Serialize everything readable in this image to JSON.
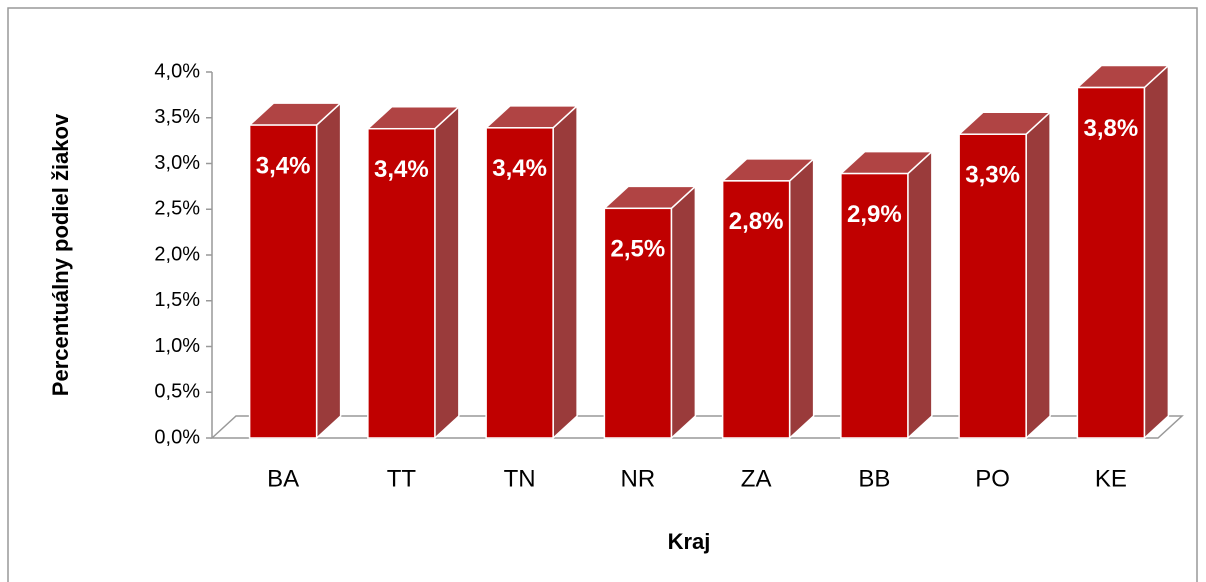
{
  "chart_data": {
    "type": "bar3d",
    "x_label": "Kraj",
    "y_label": "Percentuálny podiel žiakov",
    "categories": [
      "BA",
      "TT",
      "TN",
      "NR",
      "ZA",
      "BB",
      "PO",
      "KE"
    ],
    "values": [
      3.42,
      3.38,
      3.39,
      2.51,
      2.81,
      2.89,
      3.32,
      3.83
    ],
    "value_labels": [
      "3,4%",
      "3,4%",
      "3,4%",
      "2,5%",
      "2,8%",
      "2,9%",
      "3,3%",
      "3,8%"
    ],
    "color": "#c00000",
    "ylim": [
      0,
      4
    ],
    "yticks": [
      {
        "value": 0,
        "label": "0,0%"
      },
      {
        "value": 0.5,
        "label": "0,5%"
      },
      {
        "value": 1,
        "label": "1,0%"
      },
      {
        "value": 1.5,
        "label": "1,5%"
      },
      {
        "value": 2,
        "label": "2,0%"
      },
      {
        "value": 2.5,
        "label": "2,5%"
      },
      {
        "value": 3,
        "label": "3,0%"
      },
      {
        "value": 3.5,
        "label": "3,5%"
      },
      {
        "value": 4,
        "label": "4,0%"
      }
    ]
  }
}
